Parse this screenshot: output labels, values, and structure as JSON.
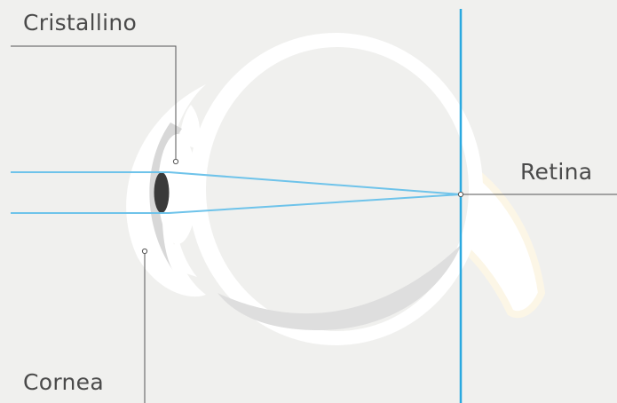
{
  "labels": {
    "cristallino": "Cristallino",
    "retina": "Retina",
    "cornea": "Cornea"
  },
  "colors": {
    "background": "#f0f0ee",
    "eyeball": "#ffffff",
    "eye_shadow": "#dcdcdc",
    "lens": "#3a3a3a",
    "light_ray": "#6ec3ea",
    "retina_line": "#2aa9e0",
    "leader_line": "#555555",
    "optic_nerve_tint": "#fcf8ee"
  }
}
